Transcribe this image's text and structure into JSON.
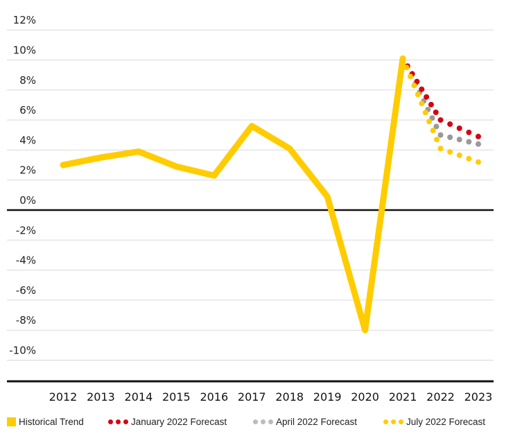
{
  "chart_data": {
    "type": "line",
    "title": "",
    "xlabel": "",
    "ylabel": "",
    "x": [
      "2012",
      "2013",
      "2014",
      "2015",
      "2016",
      "2017",
      "2018",
      "2019",
      "2020",
      "2021",
      "2022",
      "2023"
    ],
    "y_ticks": [
      "12%",
      "10%",
      "8%",
      "6%",
      "4%",
      "2%",
      "0%",
      "-2%",
      "-4%",
      "-6%",
      "-8%",
      "-10%"
    ],
    "y_tick_values": [
      12,
      10,
      8,
      6,
      4,
      2,
      0,
      -2,
      -4,
      -6,
      -8,
      -10
    ],
    "ylim": [
      -11.5,
      12
    ],
    "grid": true,
    "legend_position": "bottom",
    "series": [
      {
        "name": "Historical Trend",
        "style": "solid",
        "color": "#FFCC00",
        "x": [
          "2012",
          "2013",
          "2014",
          "2015",
          "2016",
          "2017",
          "2018",
          "2019",
          "2020",
          "2021"
        ],
        "values": [
          3.0,
          3.5,
          3.9,
          2.9,
          2.3,
          5.6,
          4.1,
          0.9,
          -8.0,
          10.1
        ]
      },
      {
        "name": "January 2022 Forecast",
        "style": "dotted",
        "color": "#D40511",
        "x": [
          "2021",
          "2022",
          "2023"
        ],
        "values": [
          10.1,
          6.0,
          4.9
        ]
      },
      {
        "name": "April 2022 Forecast",
        "style": "dotted",
        "color": "#999999",
        "x": [
          "2021",
          "2022",
          "2023"
        ],
        "values": [
          10.1,
          5.0,
          4.4
        ]
      },
      {
        "name": "July 2022 Forecast",
        "style": "dotted",
        "color": "#FFCC00",
        "x": [
          "2021",
          "2022",
          "2023"
        ],
        "values": [
          10.1,
          4.1,
          3.2
        ]
      }
    ]
  },
  "legend": {
    "historical": "Historical Trend",
    "january": "January 2022 Forecast",
    "april": "April 2022 Forecast",
    "july": "July 2022 Forecast"
  },
  "colors": {
    "yellow": "#FFCC00",
    "red": "#D40511",
    "gray": "#999999",
    "legend_gray": "#BBBBBB",
    "grid": "#D9D9D9",
    "axis": "#111111"
  }
}
